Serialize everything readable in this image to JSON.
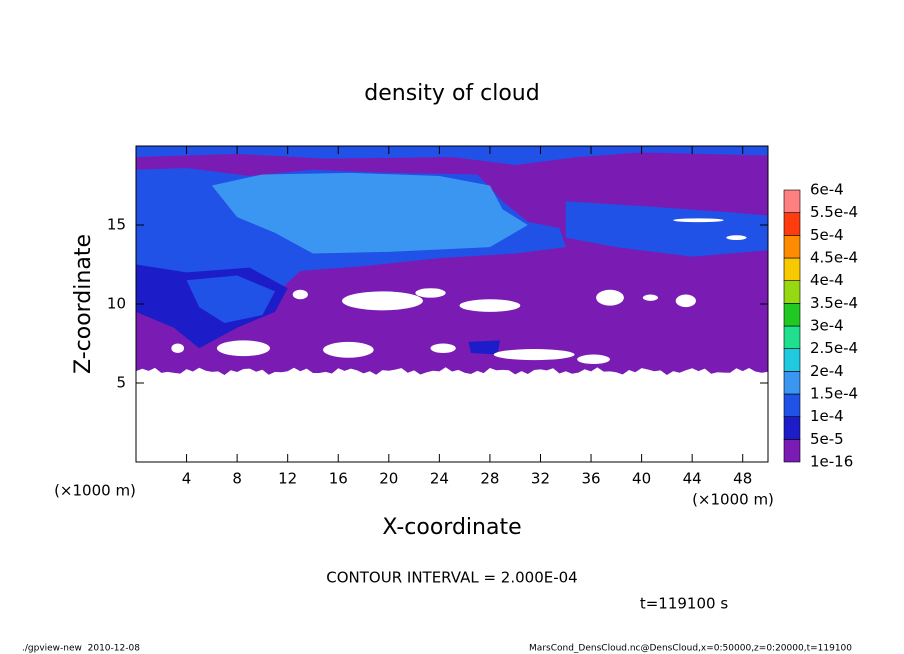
{
  "chart_data": {
    "type": "contour",
    "title": "density of cloud",
    "x_label": "X-coordinate",
    "y_label": "Z-coordinate",
    "x_unit": "(×1000 m)",
    "y_unit": "(×1000 m)",
    "xlim": [
      0,
      50
    ],
    "xticks": [
      4,
      8,
      12,
      16,
      20,
      24,
      28,
      32,
      36,
      40,
      44,
      48
    ],
    "ylim": [
      0,
      20
    ],
    "yticks": [
      5,
      10,
      15
    ],
    "contour_interval": "CONTOUR INTERVAL = 2.000E-04",
    "time_label": "t=119100 s",
    "colorbar": {
      "levels": [
        {
          "value": 1e-16,
          "label": "1e-16"
        },
        {
          "value": 5e-05,
          "label": "5e-5"
        },
        {
          "value": 0.0001,
          "label": "1e-4"
        },
        {
          "value": 0.00015,
          "label": "1.5e-4"
        },
        {
          "value": 0.0002,
          "label": "2e-4"
        },
        {
          "value": 0.00025,
          "label": "2.5e-4"
        },
        {
          "value": 0.0003,
          "label": "3e-4"
        },
        {
          "value": 0.00035,
          "label": "3.5e-4"
        },
        {
          "value": 0.0004,
          "label": "4e-4"
        },
        {
          "value": 0.00045,
          "label": "4.5e-4"
        },
        {
          "value": 0.0005,
          "label": "5e-4"
        },
        {
          "value": 0.00055,
          "label": "5.5e-4"
        },
        {
          "value": 0.0006,
          "label": "6e-4"
        }
      ],
      "colors": [
        "#7a1cb4",
        "#1c1cc8",
        "#2052e8",
        "#3a96f0",
        "#20c8e0",
        "#20e090",
        "#22c822",
        "#96d812",
        "#f8c800",
        "#ff8c00",
        "#ff3c10",
        "#ff8080"
      ]
    },
    "footer_left": "./gpview-new  2010-12-08",
    "footer_right": "MarsCond_DensCloud.nc@DensCloud,x=0:50000,z=0:20000,t=119100"
  }
}
